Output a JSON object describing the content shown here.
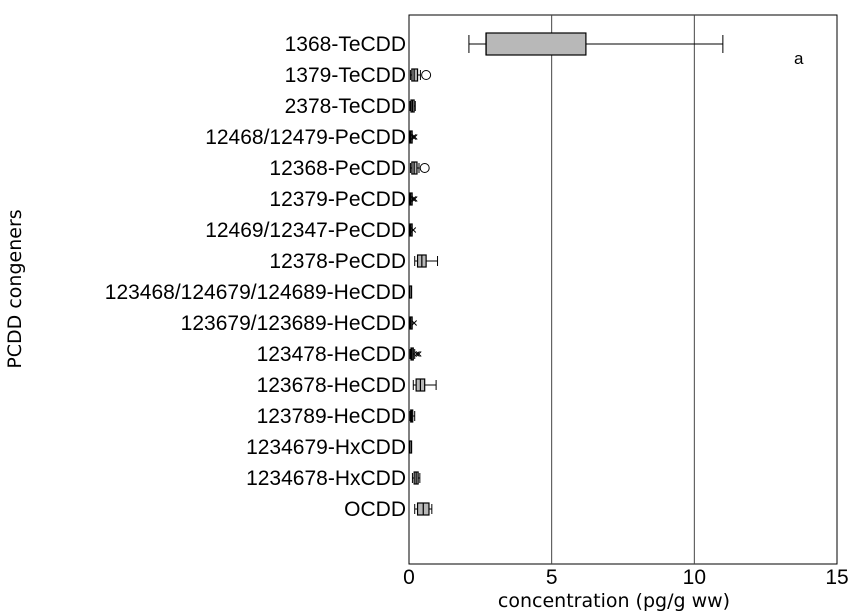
{
  "chart_data": {
    "type": "box",
    "panel_label": "a",
    "xlabel": "concentration (pg/g ww)",
    "ylabel": "PCDD congeners",
    "xlim": [
      0,
      15
    ],
    "xticks": [
      0,
      5,
      10,
      15
    ],
    "grid": "vertical at 5 and 10",
    "colors": {
      "box_fill": "#b8b8b8",
      "stroke": "#000000",
      "grid": "#444444"
    },
    "categories": [
      "1368-TeCDD",
      "1379-TeCDD",
      "2378-TeCDD",
      "12468/12479-PeCDD",
      "12368-PeCDD",
      "12379-PeCDD",
      "12469/12347-PeCDD",
      "12378-PeCDD",
      "123468/124679/124689-HeCDD",
      "123679/123689-HeCDD",
      "123478-HeCDD",
      "123678-HeCDD",
      "123789-HeCDD",
      "1234679-HxCDD",
      "1234678-HxCDD",
      "OCDD"
    ],
    "boxes": [
      {
        "whisker_low": 2.1,
        "q1": 2.7,
        "median": 2.7,
        "q3": 6.2,
        "whisker_high": 11.0,
        "outliers": []
      },
      {
        "whisker_low": 0.05,
        "q1": 0.1,
        "median": 0.18,
        "q3": 0.3,
        "whisker_high": 0.4,
        "outliers": [
          0.6
        ]
      },
      {
        "whisker_low": 0.04,
        "q1": 0.07,
        "median": 0.12,
        "q3": 0.18,
        "whisker_high": 0.22,
        "outliers": []
      },
      {
        "whisker_low": 0.02,
        "q1": 0.04,
        "median": 0.06,
        "q3": 0.08,
        "whisker_high": 0.1,
        "outliers": [
          0.15,
          0.2
        ]
      },
      {
        "whisker_low": 0.05,
        "q1": 0.1,
        "median": 0.18,
        "q3": 0.28,
        "whisker_high": 0.35,
        "outliers": [
          0.55
        ]
      },
      {
        "whisker_low": 0.02,
        "q1": 0.04,
        "median": 0.06,
        "q3": 0.08,
        "whisker_high": 0.1,
        "outliers": [
          0.15,
          0.2
        ]
      },
      {
        "whisker_low": 0.02,
        "q1": 0.04,
        "median": 0.06,
        "q3": 0.08,
        "whisker_high": 0.1,
        "outliers": [
          0.15
        ]
      },
      {
        "whisker_low": 0.2,
        "q1": 0.3,
        "median": 0.45,
        "q3": 0.6,
        "whisker_high": 1.0,
        "outliers": []
      },
      {
        "whisker_low": 0.01,
        "q1": 0.02,
        "median": 0.03,
        "q3": 0.05,
        "whisker_high": 0.07,
        "outliers": []
      },
      {
        "whisker_low": 0.02,
        "q1": 0.04,
        "median": 0.06,
        "q3": 0.08,
        "whisker_high": 0.1,
        "outliers": [
          0.18
        ]
      },
      {
        "whisker_low": 0.04,
        "q1": 0.07,
        "median": 0.1,
        "q3": 0.15,
        "whisker_high": 0.2,
        "outliers": [
          0.28,
          0.34
        ]
      },
      {
        "whisker_low": 0.15,
        "q1": 0.25,
        "median": 0.4,
        "q3": 0.55,
        "whisker_high": 0.95,
        "outliers": []
      },
      {
        "whisker_low": 0.04,
        "q1": 0.06,
        "median": 0.09,
        "q3": 0.13,
        "whisker_high": 0.2,
        "outliers": []
      },
      {
        "whisker_low": 0.01,
        "q1": 0.02,
        "median": 0.03,
        "q3": 0.05,
        "whisker_high": 0.06,
        "outliers": []
      },
      {
        "whisker_low": 0.12,
        "q1": 0.18,
        "median": 0.25,
        "q3": 0.32,
        "whisker_high": 0.38,
        "outliers": []
      },
      {
        "whisker_low": 0.2,
        "q1": 0.3,
        "median": 0.5,
        "q3": 0.7,
        "whisker_high": 0.8,
        "outliers": []
      }
    ]
  }
}
